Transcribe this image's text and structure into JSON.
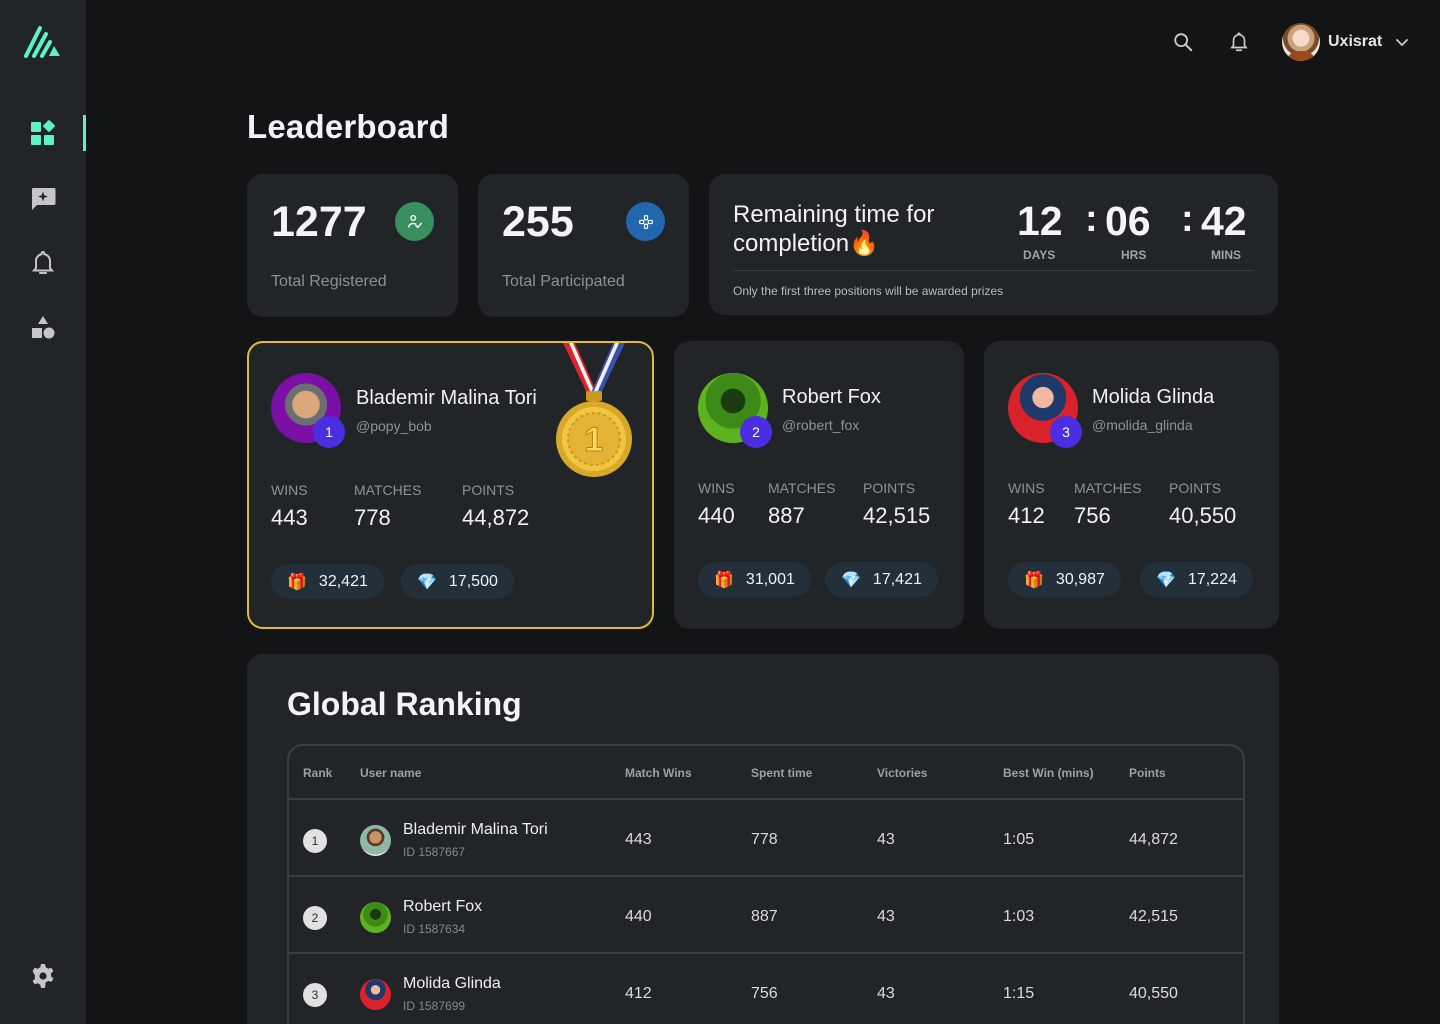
{
  "colors": {
    "accent": "#5ff1c8",
    "background": "#131416",
    "card": "#222527",
    "gold": "#e2b93b",
    "rank_badge": "#4a2ee0",
    "registered_badge": "#3a8f5f",
    "participated_badge": "#2267ad"
  },
  "sidebar": {
    "logo": "brand-logo",
    "items": [
      {
        "name": "dashboard",
        "icon": "dashboard-icon",
        "active": true
      },
      {
        "name": "feedback",
        "icon": "chat-sparkle-icon",
        "active": false
      },
      {
        "name": "notifications",
        "icon": "bell-icon",
        "active": false
      },
      {
        "name": "shapes",
        "icon": "shapes-icon",
        "active": false
      }
    ],
    "settings_icon": "gear-icon"
  },
  "topbar": {
    "search_icon": "search-icon",
    "bell_icon": "bell-icon",
    "user_name": "Uxisrat",
    "dropdown_icon": "chevron-down-icon"
  },
  "page_title": "Leaderboard",
  "stats": [
    {
      "value": "1277",
      "label": "Total Registered",
      "icon": "user-check-icon"
    },
    {
      "value": "255",
      "label": "Total Participated",
      "icon": "gamepad-icon"
    }
  ],
  "timer": {
    "title": "Remaining time for completion",
    "emoji": "🔥",
    "days": "12",
    "hrs": "06",
    "mins": "42",
    "separator": ":",
    "days_label": "DAYS",
    "hrs_label": "HRS",
    "mins_label": "MINS",
    "note": "Only the first three positions will be awarded prizes"
  },
  "top_players": [
    {
      "rank": "1",
      "name": "Blademir Malina Tori",
      "handle": "@popy_bob",
      "wins_label": "WINS",
      "wins": "443",
      "matches_label": "MATCHES",
      "matches": "778",
      "points_label": "POINTS",
      "points": "44,872",
      "gifts": "32,421",
      "gems": "17,500"
    },
    {
      "rank": "2",
      "name": "Robert Fox",
      "handle": "@robert_fox",
      "wins_label": "WINS",
      "wins": "440",
      "matches_label": "MATCHES",
      "matches": "887",
      "points_label": "POINTS",
      "points": "42,515",
      "gifts": "31,001",
      "gems": "17,421"
    },
    {
      "rank": "3",
      "name": "Molida Glinda",
      "handle": "@molida_glinda",
      "wins_label": "WINS",
      "wins": "412",
      "matches_label": "MATCHES",
      "matches": "756",
      "points_label": "POINTS",
      "points": "40,550",
      "gifts": "30,987",
      "gems": "17,224"
    }
  ],
  "global_ranking": {
    "title": "Global Ranking",
    "columns": [
      "Rank",
      "User name",
      "Match Wins",
      "Spent time",
      "Victories",
      "Best Win (mins)",
      "Points"
    ],
    "rows": [
      {
        "rank": "1",
        "name": "Blademir Malina Tori",
        "id": "ID 1587667",
        "match_wins": "443",
        "spent_time": "778",
        "victories": "43",
        "best_win": "1:05",
        "points": "44,872"
      },
      {
        "rank": "2",
        "name": "Robert Fox",
        "id": "ID 1587634",
        "match_wins": "440",
        "spent_time": "887",
        "victories": "43",
        "best_win": "1:03",
        "points": "42,515"
      },
      {
        "rank": "3",
        "name": "Molida Glinda",
        "id": "ID 1587699",
        "match_wins": "412",
        "spent_time": "756",
        "victories": "43",
        "best_win": "1:15",
        "points": "40,550"
      }
    ]
  }
}
